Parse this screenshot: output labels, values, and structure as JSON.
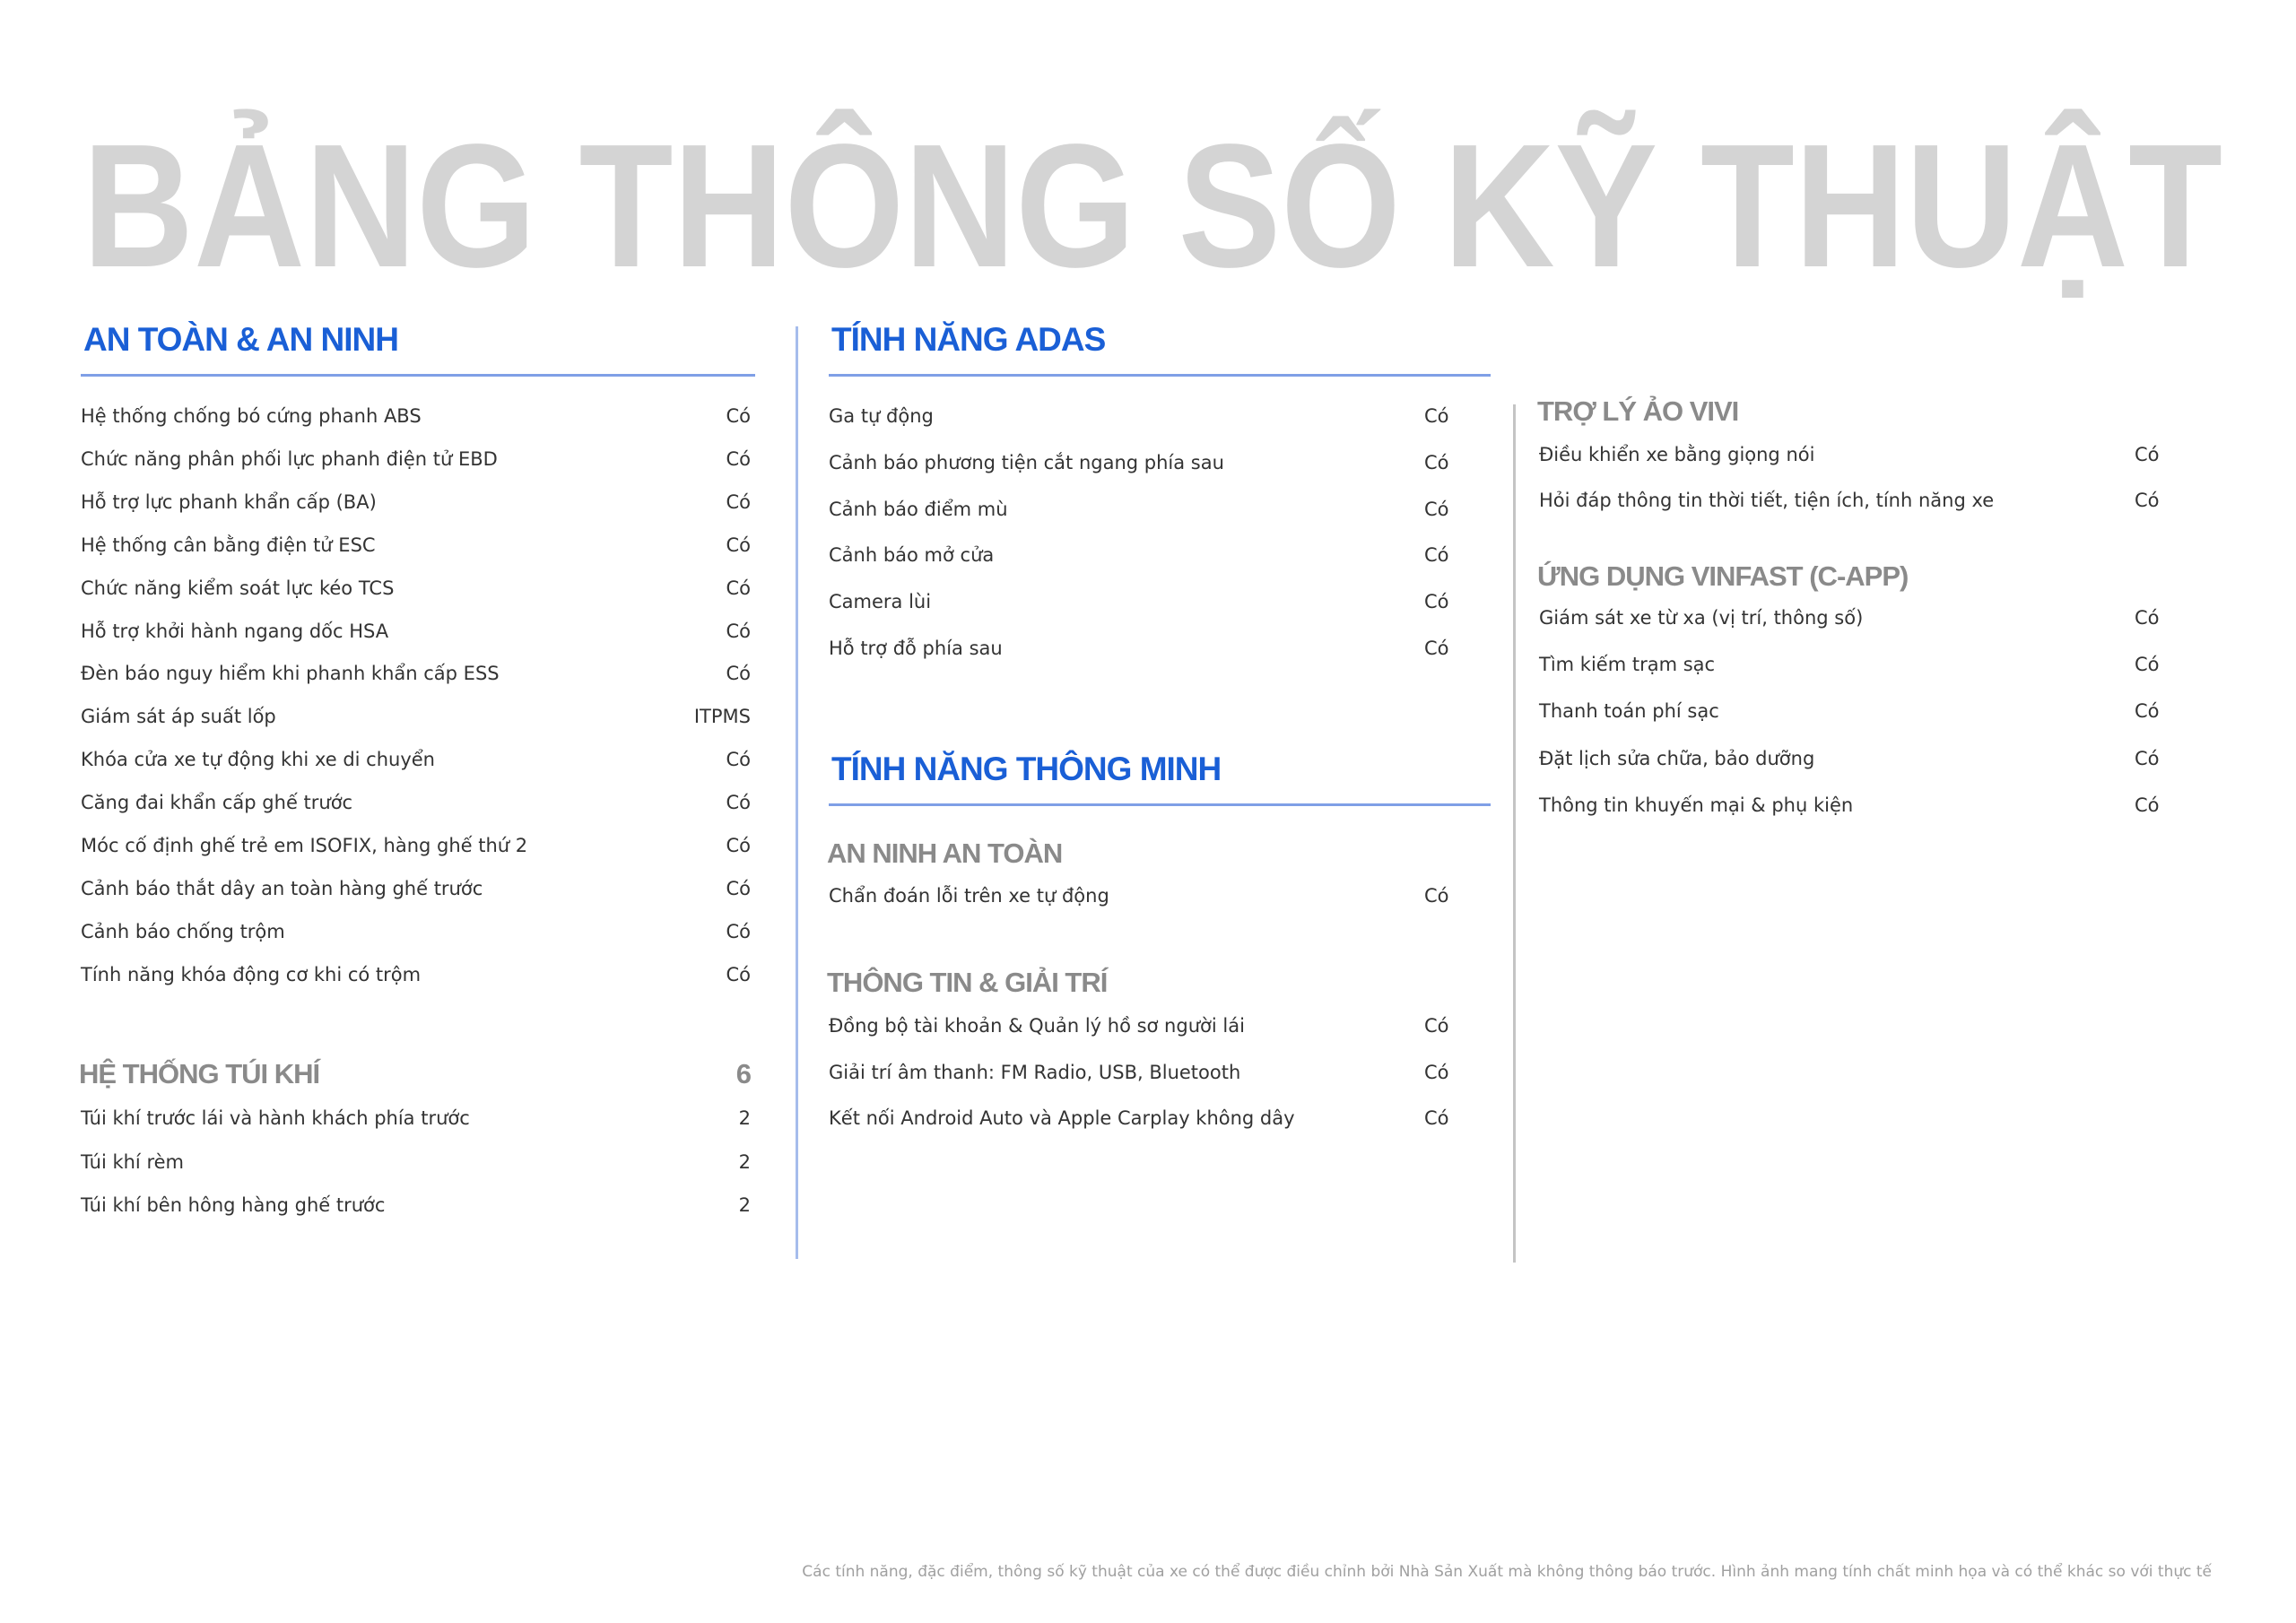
{
  "title": "BẢNG THÔNG SỐ KỸ THUẬT",
  "columns": [
    {
      "blocks": [
        {
          "heading": "AN TOÀN & AN NINH",
          "rows": [
            [
              "Hệ thống chống bó cứng phanh ABS",
              "Có"
            ],
            [
              "Chức năng phân phối lực phanh điện tử EBD",
              "Có"
            ],
            [
              "Hỗ trợ lực phanh khẩn cấp (BA)",
              "Có"
            ],
            [
              "Hệ thống cân bằng điện tử ESC",
              "Có"
            ],
            [
              "Chức năng kiểm soát lực kéo TCS",
              "Có"
            ],
            [
              "Hỗ trợ khởi hành ngang dốc HSA",
              "Có"
            ],
            [
              "Đèn báo nguy hiểm khi phanh khẩn cấp ESS",
              "Có"
            ],
            [
              "Giám sát áp suất lốp",
              "ITPMS"
            ],
            [
              "Khóa cửa xe tự động khi xe di chuyển",
              "Có"
            ],
            [
              "Căng đai khẩn cấp ghế trước",
              "Có"
            ],
            [
              "Móc cố định ghế trẻ em ISOFIX, hàng ghế thứ 2",
              "Có"
            ],
            [
              "Cảnh báo thắt dây an toàn hàng ghế trước",
              "Có"
            ],
            [
              "Cảnh báo chống trộm",
              "Có"
            ],
            [
              "Tính năng khóa động cơ khi có trộm",
              "Có"
            ]
          ]
        },
        {
          "subheading": "HỆ THỐNG TÚI KHÍ",
          "total": 6,
          "rows": [
            [
              "Túi khí trước lái và hành khách phía trước",
              2
            ],
            [
              "Túi khí rèm",
              2
            ],
            [
              "Túi khí bên hông hàng ghế trước",
              2
            ]
          ]
        }
      ]
    },
    {
      "blocks": [
        {
          "heading": "TÍNH NĂNG ADAS",
          "rows": [
            [
              "Ga tự động",
              "Có"
            ],
            [
              "Cảnh báo phương tiện cắt ngang phía sau",
              "Có"
            ],
            [
              "Cảnh báo điểm mù",
              "Có"
            ],
            [
              "Cảnh báo mở cửa",
              "Có"
            ],
            [
              "Camera lùi",
              "Có"
            ],
            [
              "Hỗ trợ đỗ phía sau",
              "Có"
            ]
          ]
        },
        {
          "heading": "TÍNH NĂNG THÔNG MINH"
        },
        {
          "subheading": "AN NINH AN TOÀN",
          "rows": [
            [
              "Chẩn đoán lỗi trên xe tự động",
              "Có"
            ]
          ]
        },
        {
          "subheading": "THÔNG TIN & GIẢI TRÍ",
          "rows": [
            [
              "Đồng bộ tài khoản & Quản lý hồ sơ người lái",
              "Có"
            ],
            [
              "Giải trí âm thanh: FM Radio, USB, Bluetooth",
              "Có"
            ],
            [
              "Kết nối Android Auto và Apple Carplay không dây",
              "Có"
            ]
          ]
        }
      ]
    },
    {
      "blocks": [
        {
          "subheading": "TRỢ LÝ ẢO VIVI",
          "rows": [
            [
              "Điều khiển xe bằng giọng nói",
              "Có"
            ],
            [
              "Hỏi đáp thông tin thời tiết, tiện ích, tính năng xe",
              "Có"
            ]
          ]
        },
        {
          "subheading": "ỨNG DỤNG VINFAST (C-APP)",
          "rows": [
            [
              "Giám sát xe từ xa (vị trí, thông số)",
              "Có"
            ],
            [
              "Tìm kiếm trạm sạc",
              "Có"
            ],
            [
              "Thanh toán phí sạc",
              "Có"
            ],
            [
              "Đặt lịch sửa chữa, bảo dưỡng",
              "Có"
            ],
            [
              "Thông tin khuyến mại & phụ kiện",
              "Có"
            ]
          ]
        }
      ]
    }
  ],
  "footnote": "Các tính năng, đặc điểm, thông số kỹ thuật của xe có thể được điều chỉnh bởi Nhà Sản Xuất mà không thông báo trước. Hình ảnh mang tính chất minh họa và có thể khác so với thực tế"
}
